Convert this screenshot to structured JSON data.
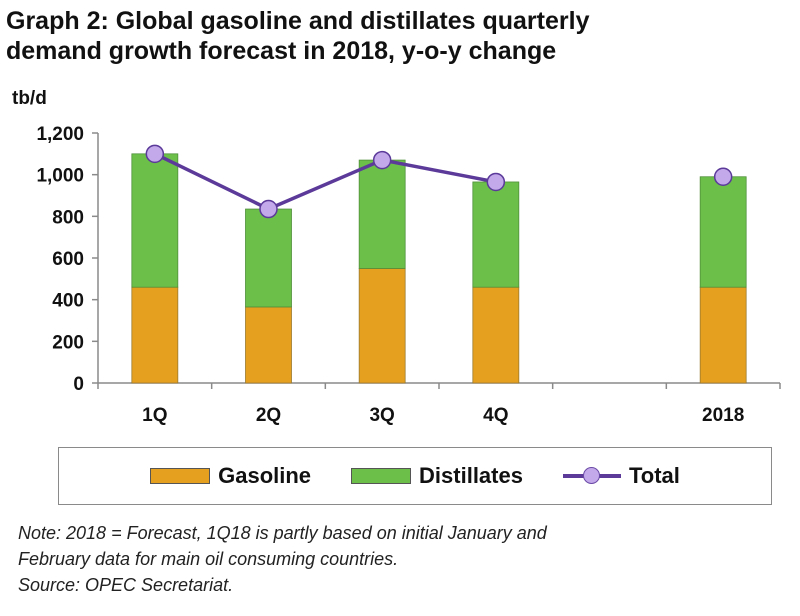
{
  "title_line1": "Graph 2: Global gasoline and distillates quarterly",
  "title_line2": "demand growth forecast in 2018, y-o-y change",
  "colors": {
    "gasoline": "#e6a020",
    "distillates": "#6cc04a",
    "total_line": "#5b3a9a",
    "total_marker": "#c3a8ea",
    "axis": "#8a8a8a"
  },
  "legend": {
    "gasoline": "Gasoline",
    "distillates": "Distillates",
    "total": "Total"
  },
  "note": {
    "line1": "Note: 2018 = Forecast, 1Q18 is partly based on initial January and",
    "line2": "February data for main oil consuming countries.",
    "line3": "Source: OPEC Secretariat."
  },
  "chart_data": {
    "type": "bar",
    "stacked": true,
    "ylabel": "tb/d",
    "ylim": [
      0,
      1200
    ],
    "yticks": [
      "0",
      "200",
      "400",
      "600",
      "800",
      "1,000",
      "1,200"
    ],
    "categories": [
      "1Q",
      "2Q",
      "3Q",
      "4Q",
      "",
      "2018"
    ],
    "series": [
      {
        "name": "Gasoline",
        "values": [
          460,
          365,
          550,
          460,
          null,
          460
        ]
      },
      {
        "name": "Distillates",
        "values": [
          640,
          470,
          520,
          505,
          null,
          530
        ]
      }
    ],
    "line_series": {
      "name": "Total",
      "values": [
        1100,
        835,
        1070,
        965,
        null,
        990
      ]
    }
  }
}
